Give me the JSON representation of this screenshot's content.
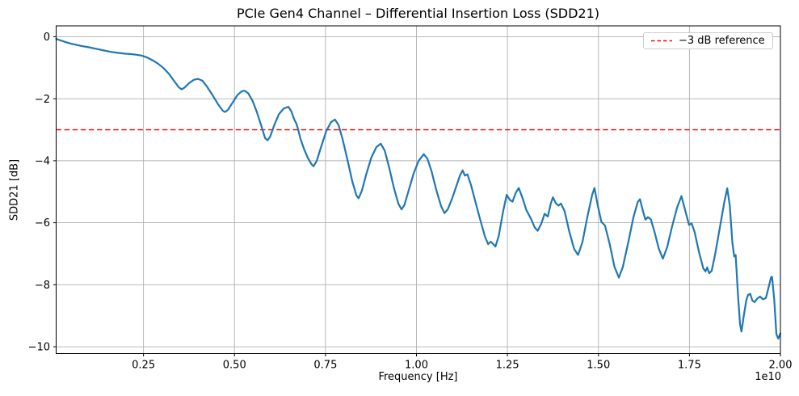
{
  "chart_data": {
    "type": "line",
    "title": "PCIe Gen4 Channel – Differential Insertion Loss (SDD21)",
    "xlabel": "Frequency [Hz]",
    "ylabel": "SDD21 [dB]",
    "x_offset_label": "1e10",
    "x_unit": "1e10 Hz",
    "xlim": [
      0.01,
      2.0
    ],
    "ylim": [
      -10.22,
      0.35
    ],
    "grid": true,
    "legend_position": "upper right",
    "colors": {
      "series": "#1f77b4",
      "reference": "#ff0000",
      "grid": "#b0b0b0",
      "spine": "#000000",
      "legend_border": "#cccccc"
    },
    "x_ticks": [
      {
        "value": 0.25,
        "label": "0.25"
      },
      {
        "value": 0.5,
        "label": "0.50"
      },
      {
        "value": 0.75,
        "label": "0.75"
      },
      {
        "value": 1.0,
        "label": "1.00"
      },
      {
        "value": 1.25,
        "label": "1.25"
      },
      {
        "value": 1.5,
        "label": "1.50"
      },
      {
        "value": 1.75,
        "label": "1.75"
      },
      {
        "value": 2.0,
        "label": "2.00"
      }
    ],
    "y_ticks": [
      {
        "value": 0,
        "label": "0"
      },
      {
        "value": -2,
        "label": "−2"
      },
      {
        "value": -4,
        "label": "−4"
      },
      {
        "value": -6,
        "label": "−6"
      },
      {
        "value": -8,
        "label": "−8"
      },
      {
        "value": -10,
        "label": "−10"
      }
    ],
    "reference_line": {
      "value": -3,
      "label": "−3 dB reference"
    },
    "series": [
      {
        "name": "SDD21",
        "points": [
          [
            0.01,
            -0.07
          ],
          [
            0.022,
            -0.12
          ],
          [
            0.035,
            -0.17
          ],
          [
            0.05,
            -0.22
          ],
          [
            0.065,
            -0.26
          ],
          [
            0.08,
            -0.3
          ],
          [
            0.1,
            -0.34
          ],
          [
            0.12,
            -0.39
          ],
          [
            0.14,
            -0.44
          ],
          [
            0.16,
            -0.49
          ],
          [
            0.18,
            -0.52
          ],
          [
            0.2,
            -0.55
          ],
          [
            0.215,
            -0.56
          ],
          [
            0.23,
            -0.58
          ],
          [
            0.245,
            -0.61
          ],
          [
            0.26,
            -0.67
          ],
          [
            0.275,
            -0.76
          ],
          [
            0.29,
            -0.87
          ],
          [
            0.305,
            -1.01
          ],
          [
            0.32,
            -1.2
          ],
          [
            0.335,
            -1.44
          ],
          [
            0.347,
            -1.63
          ],
          [
            0.355,
            -1.7
          ],
          [
            0.363,
            -1.64
          ],
          [
            0.375,
            -1.5
          ],
          [
            0.388,
            -1.39
          ],
          [
            0.4,
            -1.36
          ],
          [
            0.412,
            -1.42
          ],
          [
            0.425,
            -1.62
          ],
          [
            0.44,
            -1.89
          ],
          [
            0.455,
            -2.18
          ],
          [
            0.468,
            -2.39
          ],
          [
            0.474,
            -2.43
          ],
          [
            0.482,
            -2.36
          ],
          [
            0.495,
            -2.12
          ],
          [
            0.508,
            -1.88
          ],
          [
            0.52,
            -1.76
          ],
          [
            0.528,
            -1.74
          ],
          [
            0.538,
            -1.83
          ],
          [
            0.55,
            -2.08
          ],
          [
            0.562,
            -2.45
          ],
          [
            0.575,
            -2.92
          ],
          [
            0.584,
            -3.27
          ],
          [
            0.591,
            -3.34
          ],
          [
            0.598,
            -3.22
          ],
          [
            0.61,
            -2.83
          ],
          [
            0.622,
            -2.5
          ],
          [
            0.635,
            -2.32
          ],
          [
            0.648,
            -2.26
          ],
          [
            0.656,
            -2.4
          ],
          [
            0.664,
            -2.66
          ],
          [
            0.67,
            -2.8
          ],
          [
            0.674,
            -2.95
          ],
          [
            0.681,
            -3.28
          ],
          [
            0.691,
            -3.62
          ],
          [
            0.702,
            -3.92
          ],
          [
            0.712,
            -4.12
          ],
          [
            0.717,
            -4.18
          ],
          [
            0.726,
            -4.0
          ],
          [
            0.738,
            -3.55
          ],
          [
            0.752,
            -3.05
          ],
          [
            0.765,
            -2.76
          ],
          [
            0.776,
            -2.67
          ],
          [
            0.786,
            -2.85
          ],
          [
            0.797,
            -3.3
          ],
          [
            0.81,
            -3.95
          ],
          [
            0.824,
            -4.68
          ],
          [
            0.835,
            -5.12
          ],
          [
            0.841,
            -5.21
          ],
          [
            0.85,
            -4.97
          ],
          [
            0.862,
            -4.44
          ],
          [
            0.876,
            -3.9
          ],
          [
            0.89,
            -3.56
          ],
          [
            0.902,
            -3.45
          ],
          [
            0.913,
            -3.68
          ],
          [
            0.925,
            -4.22
          ],
          [
            0.938,
            -4.88
          ],
          [
            0.95,
            -5.38
          ],
          [
            0.959,
            -5.57
          ],
          [
            0.967,
            -5.43
          ],
          [
            0.978,
            -4.98
          ],
          [
            0.992,
            -4.42
          ],
          [
            1.006,
            -4.0
          ],
          [
            1.02,
            -3.79
          ],
          [
            1.03,
            -3.93
          ],
          [
            1.042,
            -4.36
          ],
          [
            1.055,
            -4.97
          ],
          [
            1.068,
            -5.47
          ],
          [
            1.077,
            -5.69
          ],
          [
            1.086,
            -5.57
          ],
          [
            1.098,
            -5.22
          ],
          [
            1.11,
            -4.8
          ],
          [
            1.12,
            -4.46
          ],
          [
            1.127,
            -4.31
          ],
          [
            1.133,
            -4.48
          ],
          [
            1.14,
            -4.44
          ],
          [
            1.15,
            -4.79
          ],
          [
            1.162,
            -5.33
          ],
          [
            1.175,
            -5.89
          ],
          [
            1.188,
            -6.44
          ],
          [
            1.197,
            -6.69
          ],
          [
            1.204,
            -6.61
          ],
          [
            1.211,
            -6.69
          ],
          [
            1.217,
            -6.77
          ],
          [
            1.226,
            -6.43
          ],
          [
            1.238,
            -5.64
          ],
          [
            1.248,
            -5.1
          ],
          [
            1.257,
            -5.27
          ],
          [
            1.264,
            -5.32
          ],
          [
            1.273,
            -5.03
          ],
          [
            1.281,
            -4.88
          ],
          [
            1.291,
            -5.19
          ],
          [
            1.302,
            -5.59
          ],
          [
            1.314,
            -5.86
          ],
          [
            1.325,
            -6.15
          ],
          [
            1.333,
            -6.26
          ],
          [
            1.343,
            -6.03
          ],
          [
            1.352,
            -5.71
          ],
          [
            1.361,
            -5.8
          ],
          [
            1.369,
            -5.39
          ],
          [
            1.375,
            -5.18
          ],
          [
            1.383,
            -5.37
          ],
          [
            1.39,
            -5.45
          ],
          [
            1.397,
            -5.38
          ],
          [
            1.407,
            -5.63
          ],
          [
            1.42,
            -6.29
          ],
          [
            1.433,
            -6.84
          ],
          [
            1.444,
            -7.04
          ],
          [
            1.456,
            -6.63
          ],
          [
            1.47,
            -5.79
          ],
          [
            1.483,
            -5.09
          ],
          [
            1.489,
            -4.88
          ],
          [
            1.498,
            -5.43
          ],
          [
            1.508,
            -5.97
          ],
          [
            1.518,
            -6.09
          ],
          [
            1.531,
            -6.69
          ],
          [
            1.544,
            -7.42
          ],
          [
            1.556,
            -7.77
          ],
          [
            1.567,
            -7.43
          ],
          [
            1.582,
            -6.63
          ],
          [
            1.596,
            -5.83
          ],
          [
            1.608,
            -5.33
          ],
          [
            1.614,
            -5.24
          ],
          [
            1.621,
            -5.57
          ],
          [
            1.629,
            -5.9
          ],
          [
            1.636,
            -5.82
          ],
          [
            1.644,
            -5.89
          ],
          [
            1.654,
            -6.29
          ],
          [
            1.666,
            -6.84
          ],
          [
            1.677,
            -7.16
          ],
          [
            1.689,
            -6.78
          ],
          [
            1.702,
            -6.13
          ],
          [
            1.716,
            -5.51
          ],
          [
            1.728,
            -5.14
          ],
          [
            1.739,
            -5.63
          ],
          [
            1.749,
            -6.07
          ],
          [
            1.756,
            -6.02
          ],
          [
            1.764,
            -6.29
          ],
          [
            1.776,
            -6.93
          ],
          [
            1.788,
            -7.47
          ],
          [
            1.794,
            -7.57
          ],
          [
            1.799,
            -7.44
          ],
          [
            1.804,
            -7.63
          ],
          [
            1.811,
            -7.55
          ],
          [
            1.821,
            -6.99
          ],
          [
            1.833,
            -6.19
          ],
          [
            1.846,
            -5.33
          ],
          [
            1.854,
            -4.89
          ],
          [
            1.861,
            -5.46
          ],
          [
            1.868,
            -6.63
          ],
          [
            1.873,
            -7.09
          ],
          [
            1.877,
            -7.04
          ],
          [
            1.883,
            -8.26
          ],
          [
            1.889,
            -9.27
          ],
          [
            1.893,
            -9.51
          ],
          [
            1.899,
            -9.03
          ],
          [
            1.906,
            -8.51
          ],
          [
            1.911,
            -8.33
          ],
          [
            1.917,
            -8.29
          ],
          [
            1.923,
            -8.51
          ],
          [
            1.929,
            -8.56
          ],
          [
            1.936,
            -8.45
          ],
          [
            1.944,
            -8.38
          ],
          [
            1.952,
            -8.47
          ],
          [
            1.96,
            -8.43
          ],
          [
            1.968,
            -8.06
          ],
          [
            1.974,
            -7.77
          ],
          [
            1.977,
            -7.74
          ],
          [
            1.983,
            -8.46
          ],
          [
            1.989,
            -9.59
          ],
          [
            1.994,
            -9.74
          ],
          [
            2.0,
            -9.57
          ]
        ]
      }
    ]
  }
}
